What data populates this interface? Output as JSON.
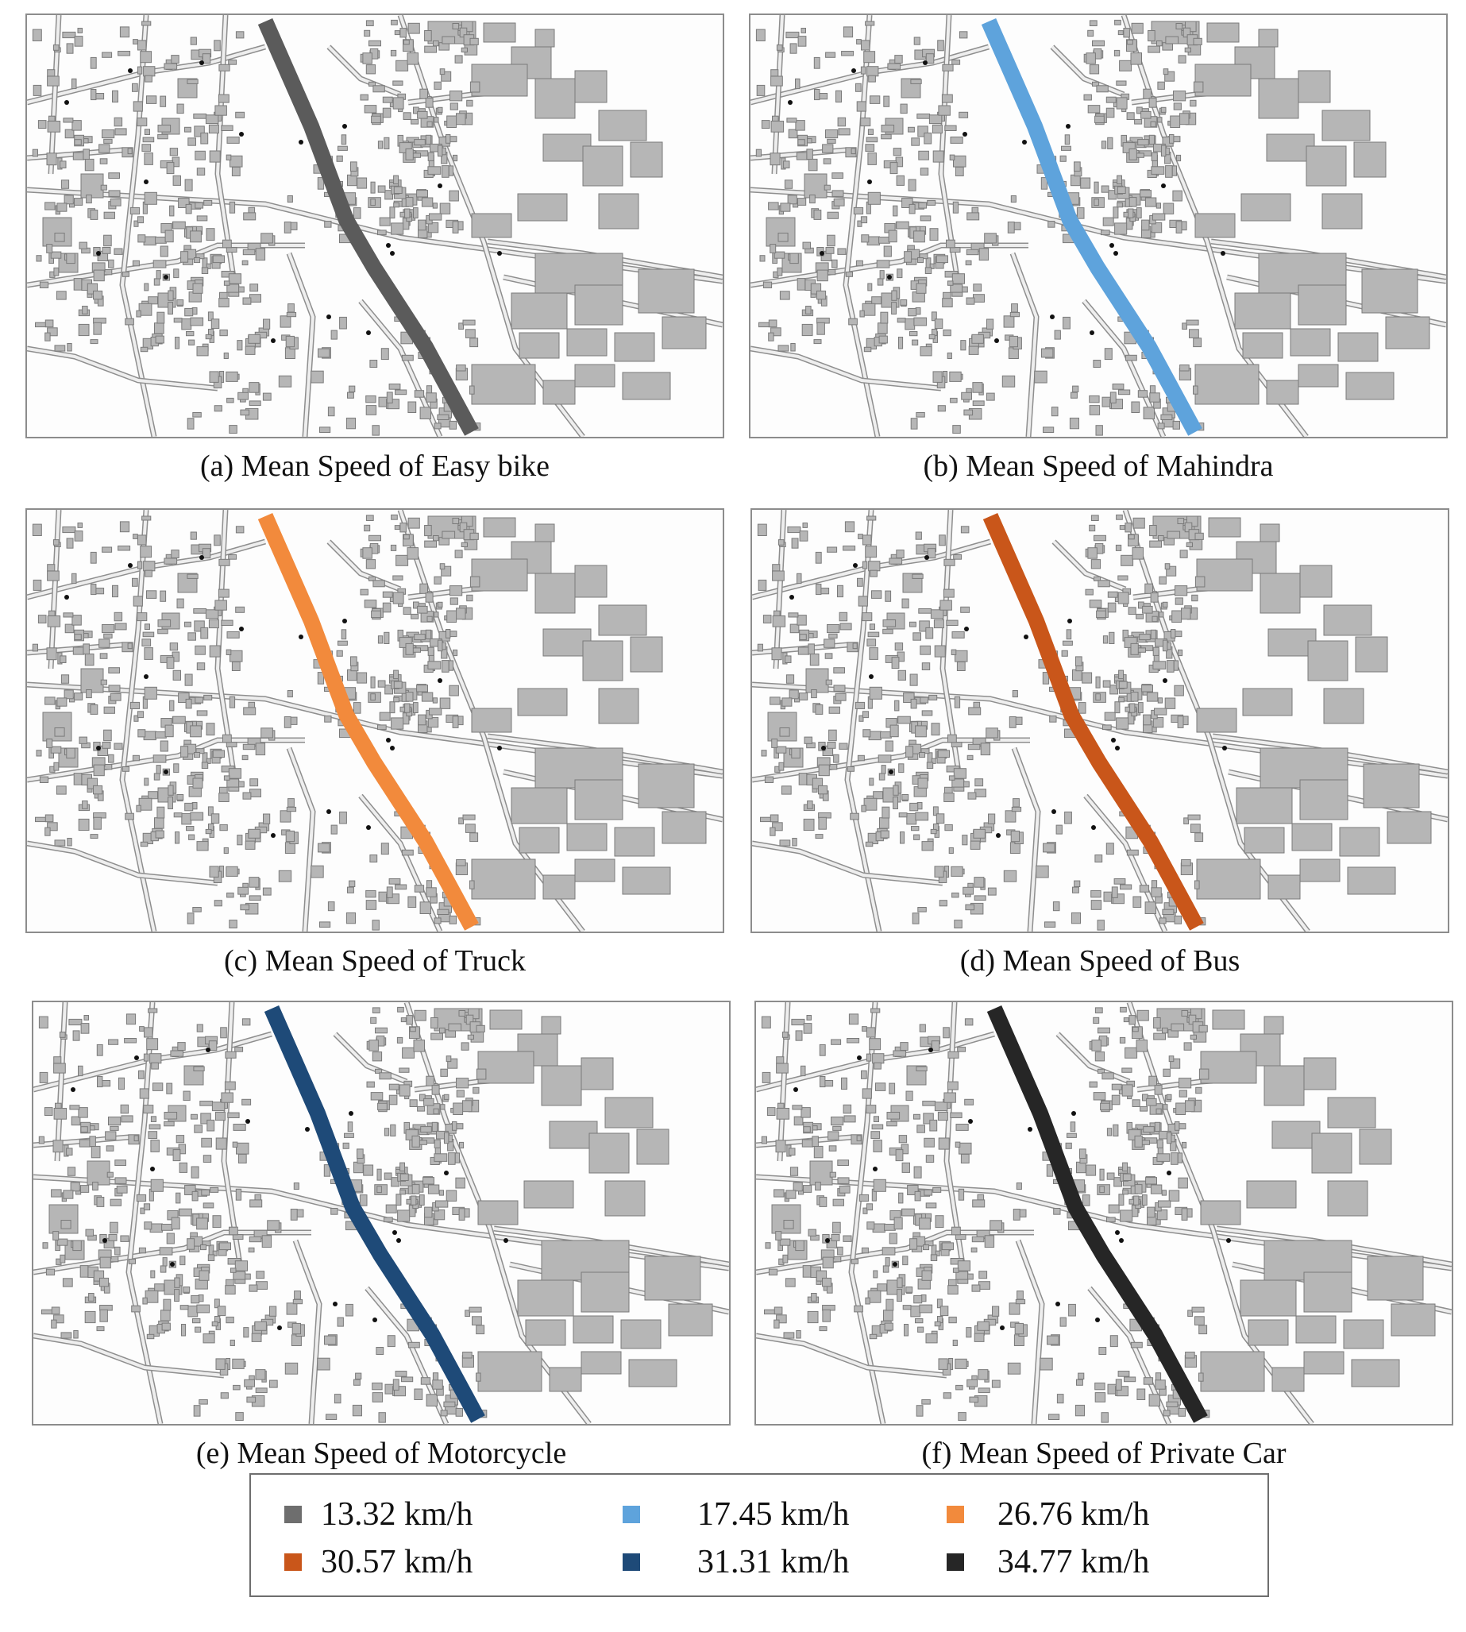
{
  "panels": [
    {
      "id": "a",
      "caption": "(a) Mean Speed of Easy bike",
      "route_color": "#5b5b5b",
      "speed": "13.32 km/h"
    },
    {
      "id": "b",
      "caption": "(b) Mean Speed of Mahindra",
      "route_color": "#5ea3dc",
      "speed": "17.45 km/h"
    },
    {
      "id": "c",
      "caption": "(c) Mean Speed of Truck",
      "route_color": "#f28a3c",
      "speed": "26.76 km/h"
    },
    {
      "id": "d",
      "caption": "(d) Mean Speed of Bus",
      "route_color": "#c9561a",
      "speed": "30.57 km/h"
    },
    {
      "id": "e",
      "caption": "(e) Mean Speed of Motorcycle",
      "route_color": "#1e4a78",
      "speed": "31.31 km/h"
    },
    {
      "id": "f",
      "caption": "(f) Mean Speed of Private Car",
      "route_color": "#262626",
      "speed": "34.77 km/h"
    }
  ],
  "legend": [
    {
      "label": "13.32 km/h",
      "color": "#6e6e6e"
    },
    {
      "label": "17.45 km/h",
      "color": "#5ea3dc"
    },
    {
      "label": "26.76 km/h",
      "color": "#f28a3c"
    },
    {
      "label": "30.57 km/h",
      "color": "#c9561a"
    },
    {
      "label": "31.31 km/h",
      "color": "#1e4a78"
    },
    {
      "label": "34.77 km/h",
      "color": "#262626"
    }
  ]
}
